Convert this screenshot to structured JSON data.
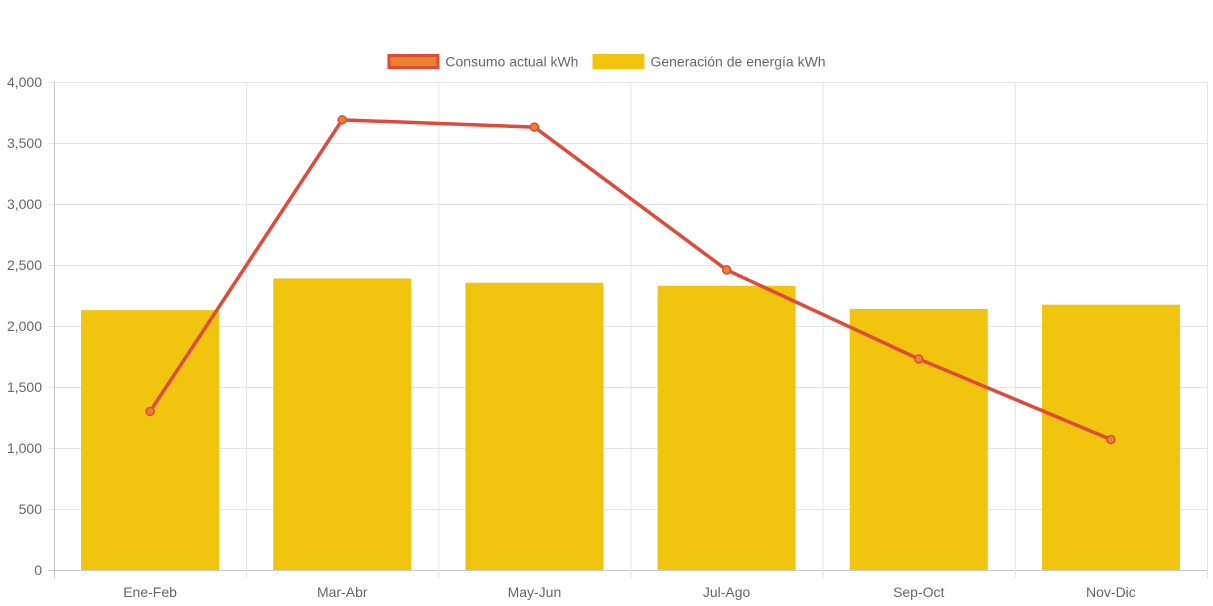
{
  "chart_data": {
    "type": "bar",
    "categories": [
      "Ene-Feb",
      "Mar-Abr",
      "May-Jun",
      "Jul-Ago",
      "Sep-Oct",
      "Nov-Dic"
    ],
    "ylim": [
      0,
      4000
    ],
    "yticks": [
      0,
      500,
      1000,
      1500,
      2000,
      2500,
      3000,
      3500,
      4000
    ],
    "ytick_labels": [
      "0",
      "500",
      "1,000",
      "1,500",
      "2,000",
      "2,500",
      "3,000",
      "3,500",
      "4,000"
    ],
    "grid": true,
    "legend_position": "top",
    "series": [
      {
        "name": "Consumo actual kWh",
        "type": "line",
        "color": "#e04a3a",
        "marker_color": "#e8832a",
        "values": [
          1300,
          3690,
          3630,
          2460,
          1730,
          1070
        ]
      },
      {
        "name": "Generación de energía kWh",
        "type": "bar",
        "color": "#f0c40f",
        "values": [
          2130,
          2390,
          2355,
          2330,
          2140,
          2175
        ]
      }
    ]
  }
}
